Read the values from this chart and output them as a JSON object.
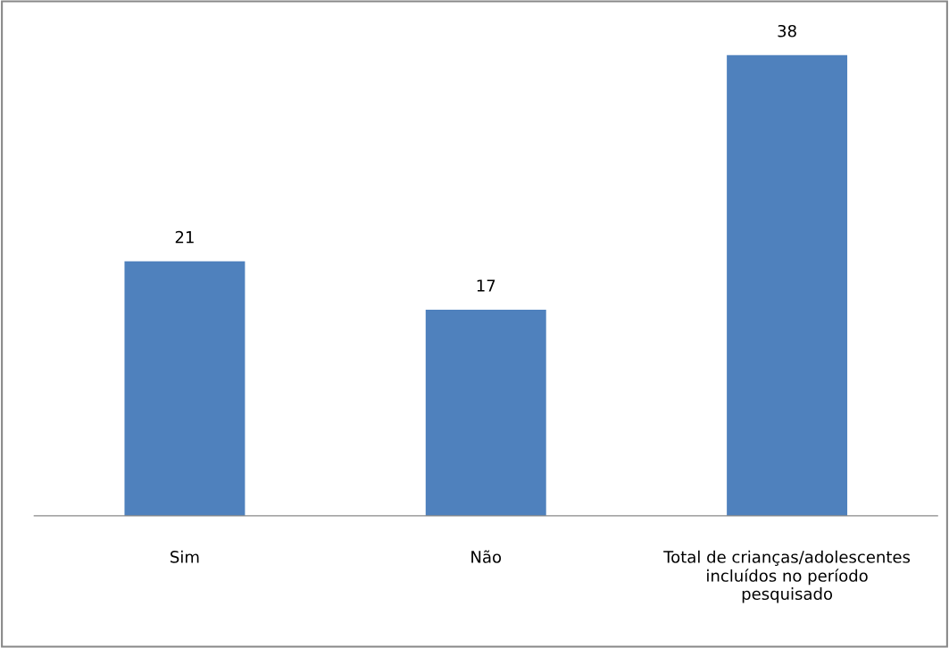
{
  "chart_data": {
    "type": "bar",
    "categories": [
      "Sim",
      "Não",
      "Total de crianças/adolescentes incluídos no período pesquisado"
    ],
    "values": [
      21,
      17,
      38
    ],
    "color": "#4f81bd",
    "data_labels": true,
    "grid": false,
    "legend": false
  }
}
